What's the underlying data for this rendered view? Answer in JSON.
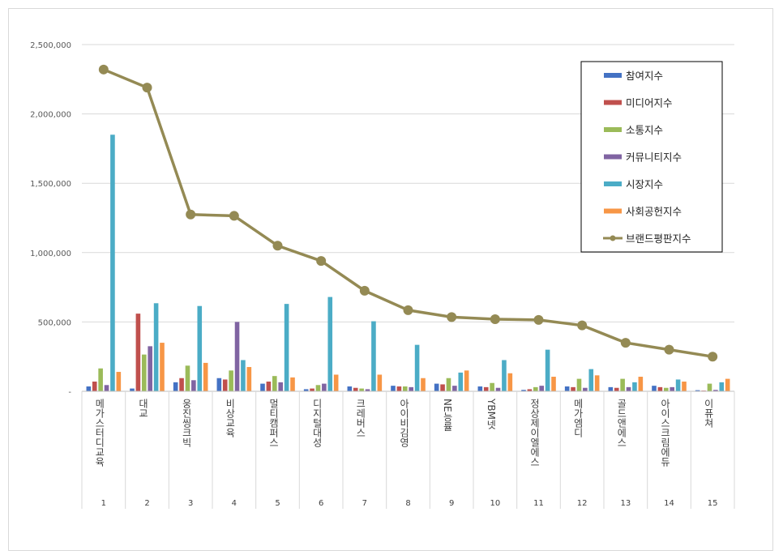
{
  "chart_data": {
    "type": "bar",
    "title": "",
    "xlabel": "",
    "ylabel": "",
    "ylim": [
      0,
      2500000
    ],
    "yticks": [
      0,
      500000,
      1000000,
      1500000,
      2000000,
      2500000
    ],
    "ytick_labels": [
      "-",
      "500,000",
      "1,000,000",
      "1,500,000",
      "2,000,000",
      "2,500,000"
    ],
    "grid": true,
    "legend_position": "top-right",
    "categories": [
      "메가스터디교육",
      "대교",
      "웅진씽크빅",
      "비상교육",
      "멀티캠퍼스",
      "디지털대성",
      "크레버스",
      "아이비김영",
      "NE능률",
      "YBM넷",
      "정상제이엘에스",
      "메가엠디",
      "골드앤에스",
      "아이스크림에듀",
      "이퓨쳐"
    ],
    "ranks": [
      "1",
      "2",
      "3",
      "4",
      "5",
      "6",
      "7",
      "8",
      "9",
      "10",
      "11",
      "12",
      "13",
      "14",
      "15"
    ],
    "series": [
      {
        "name": "참여지수",
        "kind": "bar",
        "color": "#4472c4",
        "values": [
          35000,
          20000,
          65000,
          95000,
          55000,
          15000,
          35000,
          40000,
          55000,
          35000,
          10000,
          35000,
          30000,
          40000,
          8000
        ]
      },
      {
        "name": "미디어지수",
        "kind": "bar",
        "color": "#c0504d",
        "values": [
          70000,
          560000,
          95000,
          85000,
          70000,
          20000,
          25000,
          35000,
          50000,
          30000,
          15000,
          30000,
          25000,
          30000,
          5000
        ]
      },
      {
        "name": "소통지수",
        "kind": "bar",
        "color": "#9bbb59",
        "values": [
          165000,
          265000,
          185000,
          150000,
          110000,
          45000,
          20000,
          35000,
          95000,
          60000,
          30000,
          90000,
          90000,
          25000,
          55000
        ]
      },
      {
        "name": "커뮤니티지수",
        "kind": "bar",
        "color": "#8064a2",
        "values": [
          45000,
          325000,
          80000,
          500000,
          65000,
          55000,
          15000,
          30000,
          40000,
          25000,
          40000,
          25000,
          30000,
          30000,
          10000
        ]
      },
      {
        "name": "시장지수",
        "kind": "bar",
        "color": "#4bacc6",
        "values": [
          1850000,
          635000,
          615000,
          225000,
          630000,
          680000,
          505000,
          335000,
          135000,
          225000,
          300000,
          160000,
          65000,
          85000,
          65000
        ]
      },
      {
        "name": "사회공헌지수",
        "kind": "bar",
        "color": "#f79646",
        "values": [
          140000,
          350000,
          205000,
          175000,
          100000,
          120000,
          120000,
          95000,
          150000,
          130000,
          105000,
          115000,
          105000,
          70000,
          90000
        ]
      },
      {
        "name": "브랜드평판지수",
        "kind": "line",
        "color": "#948a54",
        "values": [
          2320000,
          2190000,
          1275000,
          1265000,
          1050000,
          940000,
          725000,
          585000,
          535000,
          520000,
          515000,
          475000,
          350000,
          300000,
          250000
        ]
      }
    ]
  }
}
